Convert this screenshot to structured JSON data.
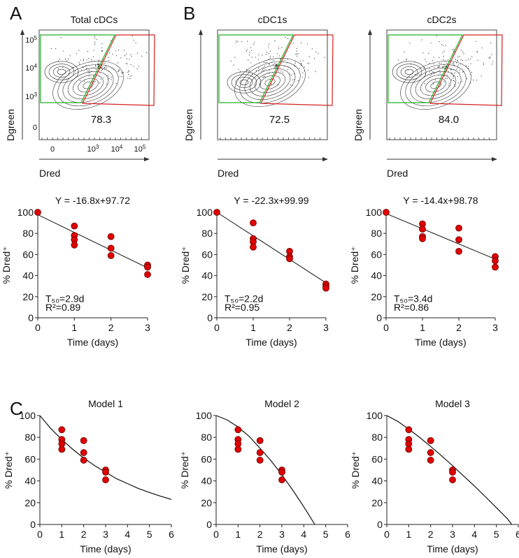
{
  "panel_letters": [
    "A",
    "B",
    "C"
  ],
  "flow_panels": [
    {
      "title": "Total cDCs",
      "gate_value": "78.3",
      "xlabel": "Dred",
      "ylabel": "Dgreen",
      "y_ticks": [
        {
          "base": "10",
          "exp": "5"
        },
        {
          "base": "10",
          "exp": "4"
        },
        {
          "base": "10",
          "exp": "3"
        },
        {
          "base": "0",
          "exp": ""
        }
      ],
      "x_ticks": [
        {
          "base": "0",
          "exp": ""
        },
        {
          "base": "10",
          "exp": "3"
        },
        {
          "base": "10",
          "exp": "4"
        },
        {
          "base": "10",
          "exp": "5"
        }
      ]
    },
    {
      "title": "cDC1s",
      "gate_value": "72.5",
      "xlabel": "Dred",
      "ylabel": "Dgreen",
      "y_ticks": [],
      "x_ticks": []
    },
    {
      "title": "cDC2s",
      "gate_value": "84.0",
      "xlabel": "Dred",
      "ylabel": "Dgreen",
      "y_ticks": [],
      "x_ticks": []
    }
  ],
  "colors": {
    "points": "#e00000",
    "gate_green": "#22b022",
    "gate_red": "#d42020",
    "line": "#111111"
  },
  "chart_data": [
    {
      "type": "scatter",
      "title": "Y = -16.8x+97.72",
      "xlabel": "Time (days)",
      "ylabel": "% Dred⁺",
      "xlim": [
        0,
        3
      ],
      "ylim": [
        0,
        100
      ],
      "x_ticks": [
        0,
        1,
        2,
        3
      ],
      "y_ticks": [
        0,
        20,
        40,
        60,
        80,
        100
      ],
      "fit": {
        "slope": -16.8,
        "intercept": 97.72
      },
      "t50": "T₅₀=2.9d",
      "r2": "R²=0.89",
      "points": [
        [
          0,
          100
        ],
        [
          1,
          87
        ],
        [
          1,
          78
        ],
        [
          1,
          74
        ],
        [
          1,
          69
        ],
        [
          2,
          77
        ],
        [
          2,
          66
        ],
        [
          2,
          59
        ],
        [
          3,
          50
        ],
        [
          3,
          48
        ],
        [
          3,
          41
        ]
      ]
    },
    {
      "type": "scatter",
      "title": "Y = -22.3x+99.99",
      "xlabel": "Time (days)",
      "ylabel": "% Dred⁺",
      "xlim": [
        0,
        3
      ],
      "ylim": [
        0,
        100
      ],
      "x_ticks": [
        0,
        1,
        2,
        3
      ],
      "y_ticks": [
        0,
        20,
        40,
        60,
        80,
        100
      ],
      "fit": {
        "slope": -22.3,
        "intercept": 99.99
      },
      "t50": "T₅₀=2.2d",
      "r2": "R²=0.95",
      "points": [
        [
          0,
          100
        ],
        [
          1,
          90
        ],
        [
          1,
          75
        ],
        [
          1,
          72
        ],
        [
          1,
          67
        ],
        [
          2,
          63
        ],
        [
          2,
          58
        ],
        [
          2,
          56
        ],
        [
          3,
          32
        ],
        [
          3,
          30
        ],
        [
          3,
          28
        ]
      ]
    },
    {
      "type": "scatter",
      "title": "Y = -14.4x+98.78",
      "xlabel": "Time (days)",
      "ylabel": "% Dred⁺",
      "xlim": [
        0,
        3
      ],
      "ylim": [
        0,
        100
      ],
      "x_ticks": [
        0,
        1,
        2,
        3
      ],
      "y_ticks": [
        0,
        20,
        40,
        60,
        80,
        100
      ],
      "fit": {
        "slope": -14.4,
        "intercept": 98.78
      },
      "t50": "T₅₀=3.4d",
      "r2": "R²=0.86",
      "points": [
        [
          0,
          100
        ],
        [
          1,
          89
        ],
        [
          1,
          84
        ],
        [
          1,
          77
        ],
        [
          1,
          75
        ],
        [
          2,
          85
        ],
        [
          2,
          74
        ],
        [
          2,
          63
        ],
        [
          3,
          58
        ],
        [
          3,
          54
        ],
        [
          3,
          48
        ]
      ]
    },
    {
      "type": "scatter",
      "title": "Model 1",
      "xlabel": "Time (days)",
      "ylabel": "% Dred⁺",
      "xlim": [
        0,
        6
      ],
      "ylim": [
        0,
        100
      ],
      "x_ticks": [
        0,
        1,
        2,
        3,
        4,
        5,
        6
      ],
      "y_ticks": [
        0,
        20,
        40,
        60,
        80,
        100
      ],
      "points": [
        [
          1,
          87
        ],
        [
          1,
          78
        ],
        [
          1,
          74
        ],
        [
          1,
          69
        ],
        [
          2,
          77
        ],
        [
          2,
          66
        ],
        [
          2,
          59
        ],
        [
          3,
          50
        ],
        [
          3,
          48
        ],
        [
          3,
          41
        ]
      ],
      "curve": [
        [
          0,
          100
        ],
        [
          0.5,
          88
        ],
        [
          1,
          78
        ],
        [
          1.5,
          69
        ],
        [
          2,
          61
        ],
        [
          2.5,
          54
        ],
        [
          3,
          48
        ],
        [
          3.5,
          42
        ],
        [
          4,
          37.5
        ],
        [
          4.5,
          33
        ],
        [
          5,
          29.4
        ],
        [
          5.5,
          26
        ],
        [
          6,
          23
        ]
      ]
    },
    {
      "type": "scatter",
      "title": "Model 2",
      "xlabel": "Time (days)",
      "ylabel": "% Dred⁺",
      "xlim": [
        0,
        6
      ],
      "ylim": [
        0,
        100
      ],
      "x_ticks": [
        0,
        1,
        2,
        3,
        4,
        5,
        6
      ],
      "y_ticks": [
        0,
        20,
        40,
        60,
        80,
        100
      ],
      "points": [
        [
          1,
          87
        ],
        [
          1,
          78
        ],
        [
          1,
          74
        ],
        [
          1,
          69
        ],
        [
          2,
          77
        ],
        [
          2,
          66
        ],
        [
          2,
          59
        ],
        [
          3,
          50
        ],
        [
          3,
          48
        ],
        [
          3,
          41
        ]
      ],
      "curve": [
        [
          0,
          100
        ],
        [
          0.5,
          96
        ],
        [
          1,
          89.5
        ],
        [
          1.5,
          81
        ],
        [
          2,
          70
        ],
        [
          2.5,
          58.6
        ],
        [
          3,
          45.6
        ],
        [
          3.5,
          31.4
        ],
        [
          4,
          16.2
        ],
        [
          4.3,
          6.6
        ],
        [
          4.5,
          0
        ]
      ]
    },
    {
      "type": "scatter",
      "title": "Model 3",
      "xlabel": "Time (days)",
      "ylabel": "% Dred⁺",
      "xlim": [
        0,
        6
      ],
      "ylim": [
        0,
        100
      ],
      "x_ticks": [
        0,
        1,
        2,
        3,
        4,
        5,
        6
      ],
      "y_ticks": [
        0,
        20,
        40,
        60,
        80,
        100
      ],
      "points": [
        [
          1,
          87
        ],
        [
          1,
          78
        ],
        [
          1,
          74
        ],
        [
          1,
          69
        ],
        [
          2,
          77
        ],
        [
          2,
          66
        ],
        [
          2,
          59
        ],
        [
          3,
          50
        ],
        [
          3,
          48
        ],
        [
          3,
          41
        ]
      ],
      "curve": [
        [
          0,
          100
        ],
        [
          0.5,
          94.6
        ],
        [
          1,
          87.6
        ],
        [
          1.5,
          79.9
        ],
        [
          2,
          71.6
        ],
        [
          2.5,
          63
        ],
        [
          3,
          54
        ],
        [
          3.5,
          44.6
        ],
        [
          4,
          35.3
        ],
        [
          4.5,
          25.4
        ],
        [
          5,
          15.4
        ],
        [
          5.5,
          5.3
        ],
        [
          5.7,
          0
        ]
      ]
    }
  ]
}
